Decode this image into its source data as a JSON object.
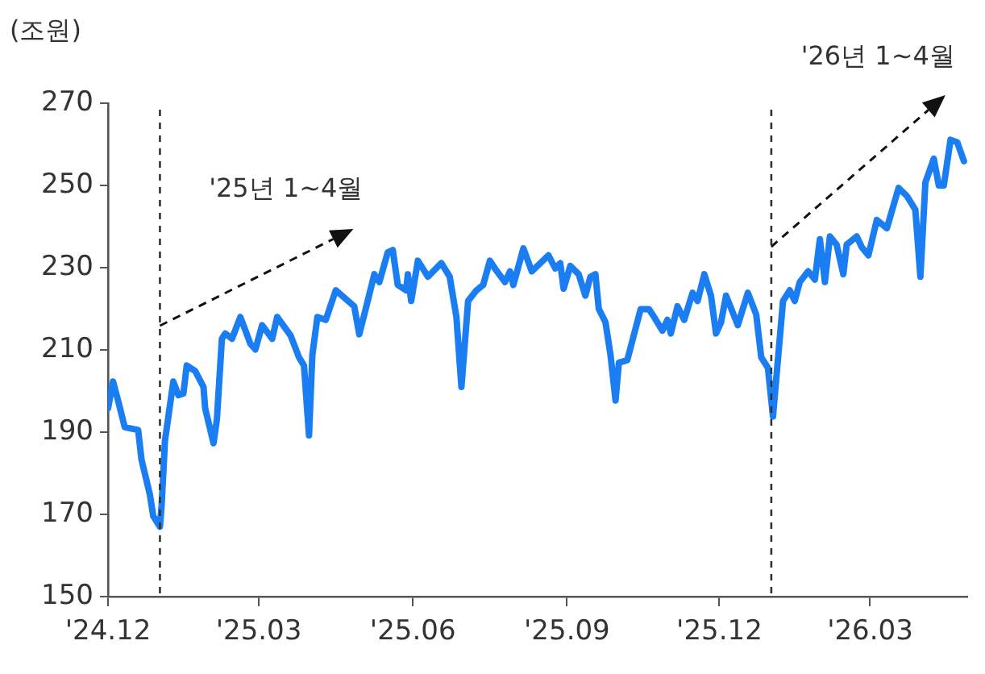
{
  "chart_data": {
    "type": "line",
    "ylabel": "(조원)",
    "annotations": [
      "'25년 1~4월",
      "'26년 1~4월"
    ],
    "x": [
      "2024-12-01",
      "2024-12-04",
      "2024-12-07",
      "2024-12-11",
      "2024-12-19",
      "2024-12-21",
      "2024-12-26",
      "2024-12-28",
      "2025-01-01",
      "2025-01-02",
      "2025-01-04",
      "2025-01-09",
      "2025-01-12",
      "2025-01-15",
      "2025-01-17",
      "2025-01-22",
      "2025-01-27",
      "2025-01-28",
      "2025-02-02",
      "2025-02-04",
      "2025-02-07",
      "2025-02-09",
      "2025-02-13",
      "2025-02-18",
      "2025-02-24",
      "2025-02-27",
      "2025-03-03",
      "2025-03-09",
      "2025-03-12",
      "2025-03-20",
      "2025-03-25",
      "2025-03-28",
      "2025-03-31",
      "2025-04-02",
      "2025-04-05",
      "2025-04-10",
      "2025-04-16",
      "2025-04-27",
      "2025-04-30",
      "2025-05-03",
      "2025-05-09",
      "2025-05-12",
      "2025-05-17",
      "2025-05-20",
      "2025-05-23",
      "2025-05-28",
      "2025-05-29",
      "2025-05-31",
      "2025-06-04",
      "2025-06-10",
      "2025-06-18",
      "2025-06-23",
      "2025-06-27",
      "2025-06-30",
      "2025-07-04",
      "2025-07-09",
      "2025-07-13",
      "2025-07-17",
      "2025-07-20",
      "2025-07-26",
      "2025-07-29",
      "2025-07-31",
      "2025-08-06",
      "2025-08-11",
      "2025-08-21",
      "2025-08-25",
      "2025-08-28",
      "2025-08-30",
      "2025-09-03",
      "2025-09-08",
      "2025-09-12",
      "2025-09-15",
      "2025-09-18",
      "2025-09-20",
      "2025-09-24",
      "2025-09-27",
      "2025-09-30",
      "2025-10-02",
      "2025-10-07",
      "2025-10-15",
      "2025-10-20",
      "2025-10-23",
      "2025-10-28",
      "2025-10-31",
      "2025-11-02",
      "2025-11-06",
      "2025-11-10",
      "2025-11-15",
      "2025-11-18",
      "2025-11-22",
      "2025-11-26",
      "2025-11-29",
      "2025-12-02",
      "2025-12-05",
      "2025-12-12",
      "2025-12-18",
      "2025-12-23",
      "2025-12-26",
      "2025-12-30",
      "2026-01-02",
      "2026-01-08",
      "2026-01-12",
      "2026-01-15",
      "2026-01-18",
      "2026-01-23",
      "2026-01-27",
      "2026-01-30",
      "2026-02-02",
      "2026-02-05",
      "2026-02-09",
      "2026-02-13",
      "2026-02-15",
      "2026-02-21",
      "2026-02-24",
      "2026-02-28",
      "2026-03-05",
      "2026-03-11",
      "2026-03-18",
      "2026-03-23",
      "2026-03-28",
      "2026-03-31",
      "2026-04-03",
      "2026-04-08",
      "2026-04-11",
      "2026-04-14",
      "2026-04-18",
      "2026-04-22",
      "2026-04-26"
    ],
    "series": [
      {
        "color": "#1a7ef2",
        "values": [
          195.8,
          202.3,
          197.7,
          191.2,
          190.5,
          183.3,
          174.8,
          169.6,
          167,
          172.2,
          187.9,
          202.3,
          199,
          199.4,
          206.2,
          204.9,
          201,
          195.8,
          187.3,
          193.1,
          212.7,
          214,
          212.7,
          218,
          211.5,
          210.1,
          216,
          212.7,
          218,
          213.5,
          208.2,
          206.2,
          189.2,
          208.8,
          218,
          217.3,
          224.5,
          220.6,
          213.8,
          218.6,
          228.4,
          226.5,
          233.7,
          234.3,
          225.8,
          224.5,
          228.4,
          221.9,
          231.7,
          227.8,
          231.1,
          227.8,
          218,
          201,
          221.9,
          224.5,
          225.8,
          231.7,
          229.8,
          226.5,
          229.1,
          225.8,
          234.7,
          229.1,
          233,
          229.8,
          231.1,
          224.9,
          230.4,
          228.4,
          223.2,
          227.8,
          228.4,
          220,
          216.7,
          208.8,
          197.7,
          206.9,
          207.5,
          219.9,
          219.9,
          218,
          214.7,
          217.3,
          214,
          220.6,
          217.3,
          223.9,
          221.9,
          228.4,
          223.2,
          214,
          216.7,
          223.2,
          216,
          223.9,
          218.6,
          208.2,
          205.6,
          193.8,
          221.9,
          224.5,
          221.9,
          226.5,
          229.1,
          227.1,
          236.9,
          226.5,
          237.6,
          235.6,
          228.4,
          235.6,
          237.6,
          235,
          233,
          241.6,
          239.6,
          249.4,
          247.4,
          244.1,
          227.8,
          250.7,
          256.5,
          250,
          250,
          261.1,
          260.5,
          255.9
        ]
      }
    ],
    "xlim": [
      "2024-12-01",
      "2026-04-28"
    ],
    "xticks": [
      {
        "value": "2024-12",
        "label": "'24.12"
      },
      {
        "value": "2025-03",
        "label": "'25.03"
      },
      {
        "value": "2025-06",
        "label": "'25.06"
      },
      {
        "value": "2025-09",
        "label": "'25.09"
      },
      {
        "value": "2025-12",
        "label": "'25.12"
      },
      {
        "value": "2026-03",
        "label": "'26.03"
      }
    ],
    "ylim": [
      150,
      270
    ],
    "yticks": [
      150,
      170,
      190,
      210,
      230,
      250,
      270
    ],
    "ref_lines": [
      {
        "axis": "x",
        "value": "2025-01-01",
        "color": "#333333",
        "line_style": "dashed"
      },
      {
        "axis": "x",
        "value": "2026-01-01",
        "color": "#333333",
        "line_style": "dashed"
      }
    ],
    "grid": false,
    "legend": false,
    "marker": "none",
    "line_style": "solid"
  }
}
